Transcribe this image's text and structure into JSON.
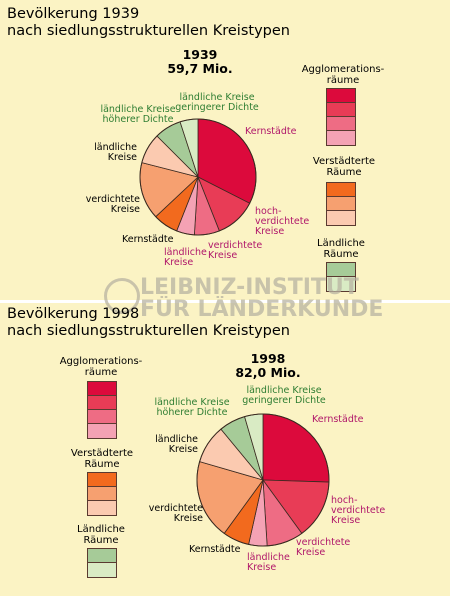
{
  "colors": {
    "agglomeration": [
      "#dc0a3c",
      "#e83c56",
      "#ee6c84",
      "#f4a2b4"
    ],
    "urbanized": [
      "#f26a1e",
      "#f6a070",
      "#fbcab0"
    ],
    "rural": [
      "#a6cb98",
      "#d9ebc4"
    ],
    "label_magenta": "#b0176a",
    "label_green": "#2e7d32"
  },
  "watermark": {
    "line1": "LEIBNIZ-INSTITUT",
    "line2": "FÜR LÄNDERKUNDE"
  },
  "chart_data": [
    {
      "type": "pie",
      "title_line1": "Bevölkerung 1939",
      "title_line2": "nach siedlungsstrukturellen Kreistypen",
      "year": "1939",
      "total": "59,7 Mio.",
      "legend": {
        "agglomeration": "Agglomerations-räume",
        "urbanized": "Verstädterte Räume",
        "rural": "Ländliche Räume"
      },
      "slices": [
        {
          "label": "Kernstädte",
          "group": "Agglomerationsräume",
          "value": 32.5
        },
        {
          "label": "hochverdichtete Kreise",
          "group": "Agglomerationsräume",
          "value": 11.5
        },
        {
          "label": "verdichtete Kreise",
          "group": "Agglomerationsräume",
          "value": 7.0
        },
        {
          "label": "ländliche Kreise",
          "group": "Agglomerationsräume",
          "value": 5.0
        },
        {
          "label": "Kernstädte",
          "group": "Verstädterte Räume",
          "value": 7.0
        },
        {
          "label": "verdichtete Kreise",
          "group": "Verstädterte Räume",
          "value": 16.0
        },
        {
          "label": "ländliche Kreise",
          "group": "Verstädterte Räume",
          "value": 8.5
        },
        {
          "label": "ländliche Kreise höherer Dichte",
          "group": "Ländliche Räume",
          "value": 7.5
        },
        {
          "label": "ländliche Kreise geringerer Dichte",
          "group": "Ländliche Räume",
          "value": 5.0
        }
      ]
    },
    {
      "type": "pie",
      "title_line1": "Bevölkerung 1998",
      "title_line2": "nach siedlungsstrukturellen Kreistypen",
      "year": "1998",
      "total": "82,0 Mio.",
      "legend": {
        "agglomeration": "Agglomerations-räume",
        "urbanized": "Verstädterte Räume",
        "rural": "Ländliche Räume"
      },
      "slices": [
        {
          "label": "Kernstädte",
          "group": "Agglomerationsräume",
          "value": 25.5
        },
        {
          "label": "hochverdichtete Kreise",
          "group": "Agglomerationsräume",
          "value": 14.5
        },
        {
          "label": "verdichtete Kreise",
          "group": "Agglomerationsräume",
          "value": 9.0
        },
        {
          "label": "ländliche Kreise",
          "group": "Agglomerationsräume",
          "value": 4.5
        },
        {
          "label": "Kernstädte",
          "group": "Verstädterte Räume",
          "value": 6.5
        },
        {
          "label": "verdichtete Kreise",
          "group": "Verstädterte Räume",
          "value": 19.5
        },
        {
          "label": "ländliche Kreise",
          "group": "Verstädterte Räume",
          "value": 9.5
        },
        {
          "label": "ländliche Kreise höherer Dichte",
          "group": "Ländliche Räume",
          "value": 6.5
        },
        {
          "label": "ländliche Kreise geringerer Dichte",
          "group": "Ländliche Räume",
          "value": 4.5
        }
      ]
    }
  ]
}
